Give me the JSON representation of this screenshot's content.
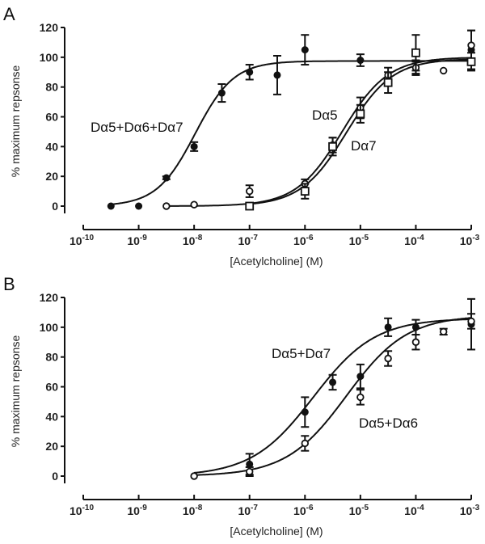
{
  "chart_data": [
    {
      "panel_label": "A",
      "type": "scatter",
      "xlabel": "[Acetylcholine] (M)",
      "ylabel": "% maximum repsonse",
      "x_scale": "log",
      "xlim": [
        1e-10,
        0.001
      ],
      "x_ticks": [
        -10,
        -9,
        -8,
        -7,
        -6,
        -5,
        -4,
        -3
      ],
      "ylim": [
        0,
        120
      ],
      "y_ticks": [
        0,
        20,
        40,
        60,
        80,
        100,
        120
      ],
      "grid": false,
      "series": [
        {
          "name": "Dα5+Dα6+Dα7",
          "marker": "filled-circle",
          "x": [
            3.16e-10,
            1e-09,
            3.16e-09,
            1e-08,
            3.16e-08,
            1e-07,
            3.16e-07,
            1e-06,
            1e-05,
            0.0001,
            0.001
          ],
          "y": [
            0,
            0,
            19,
            40,
            76,
            90,
            88,
            105,
            98,
            93,
            105
          ],
          "err": [
            0,
            0,
            1,
            3,
            6,
            5,
            13,
            10,
            4,
            5,
            13
          ]
        },
        {
          "name": "Dα5",
          "marker": "open-circle",
          "x": [
            3.16e-09,
            1e-08,
            1e-07,
            1e-06,
            3.16e-06,
            1e-05,
            3.16e-05,
            0.0001,
            0.000316,
            0.001
          ],
          "y": [
            0,
            1,
            10,
            15,
            41,
            66,
            88,
            93,
            91,
            108
          ],
          "err": [
            0,
            0,
            4,
            3,
            5,
            7,
            5,
            4,
            0,
            10
          ]
        },
        {
          "name": "Dα7",
          "marker": "open-square",
          "x": [
            1e-07,
            1e-06,
            3.16e-06,
            1e-05,
            3.16e-05,
            0.0001,
            0.001
          ],
          "y": [
            0,
            10,
            40,
            62,
            83,
            103,
            97
          ],
          "err": [
            1,
            5,
            6,
            6,
            7,
            12,
            6
          ]
        }
      ]
    },
    {
      "panel_label": "B",
      "type": "scatter",
      "xlabel": "[Acetylcholine] (M)",
      "ylabel": "% maximum repsonse",
      "x_scale": "log",
      "xlim": [
        1e-10,
        0.001
      ],
      "x_ticks": [
        -10,
        -9,
        -8,
        -7,
        -6,
        -5,
        -4,
        -3
      ],
      "ylim": [
        0,
        120
      ],
      "y_ticks": [
        0,
        20,
        40,
        60,
        80,
        100,
        120
      ],
      "grid": false,
      "series": [
        {
          "name": "Dα5+Dα7",
          "marker": "filled-circle",
          "x": [
            1e-08,
            1e-07,
            1e-06,
            3.16e-06,
            1e-05,
            3.16e-05,
            0.0001,
            0.001
          ],
          "y": [
            0,
            8,
            43,
            63,
            67,
            100,
            100,
            102
          ],
          "err": [
            0,
            7,
            10,
            5,
            8,
            6,
            5,
            17
          ]
        },
        {
          "name": "Dα5+Dα6",
          "marker": "open-circle",
          "x": [
            1e-08,
            1e-07,
            1e-06,
            1e-05,
            3.16e-05,
            0.0001,
            0.000316,
            0.001
          ],
          "y": [
            0,
            3,
            22,
            53,
            79,
            90,
            97,
            104
          ],
          "err": [
            0,
            3,
            5,
            5,
            5,
            5,
            2,
            5
          ]
        }
      ]
    }
  ]
}
